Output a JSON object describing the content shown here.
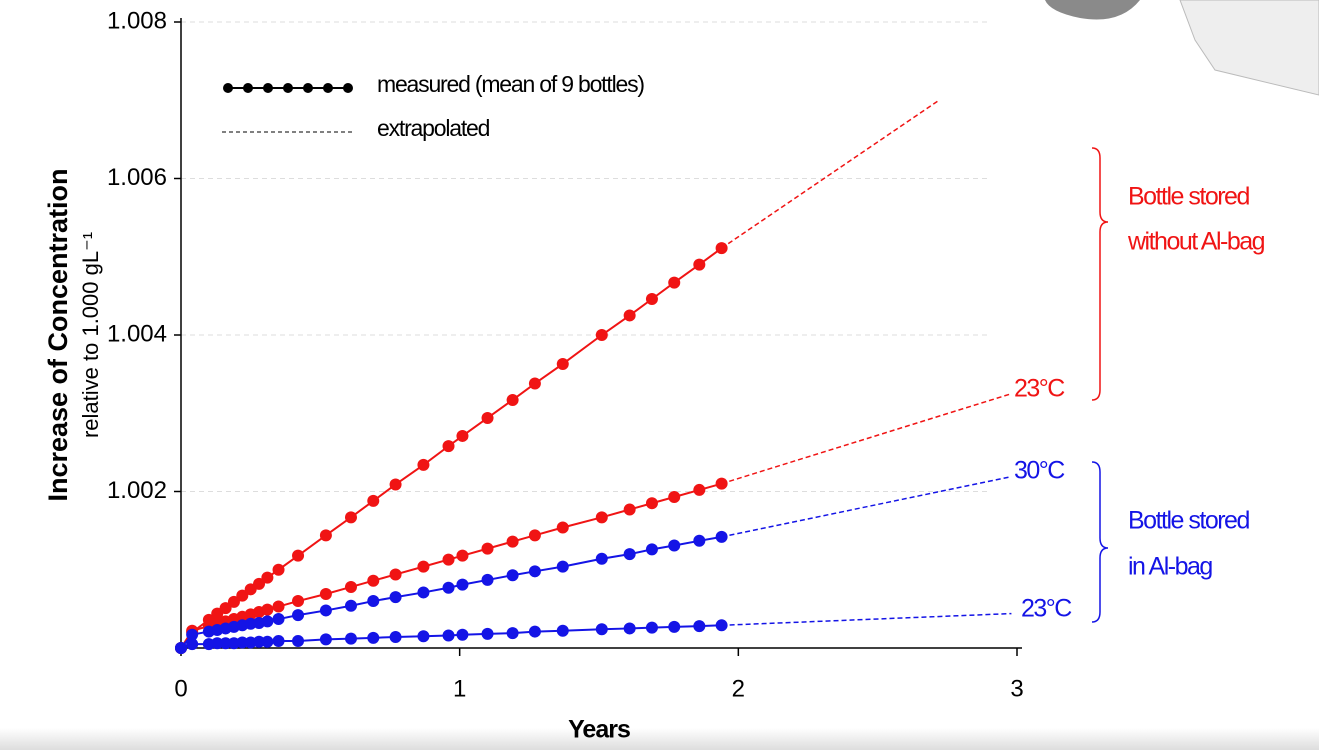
{
  "chart_data": {
    "type": "line",
    "ylabel": "Increase of Concentration",
    "ylabel_sub": "relative to 1.000 gL⁻¹",
    "xlabel": "Years",
    "xlim": [
      0,
      3
    ],
    "xticks": [
      0,
      1,
      2,
      3
    ],
    "ylim": [
      1.0,
      1.008
    ],
    "yticks": [
      1.002,
      1.004,
      1.006,
      1.008
    ],
    "grid": true,
    "legend": [
      "measured (mean of 9 bottles)",
      "extrapolated"
    ],
    "x": [
      0,
      0.04,
      0.1,
      0.13,
      0.16,
      0.19,
      0.22,
      0.25,
      0.28,
      0.31,
      0.35,
      0.42,
      0.52,
      0.61,
      0.69,
      0.77,
      0.87,
      0.96,
      1.01,
      1.1,
      1.19,
      1.27,
      1.37,
      1.51,
      1.61,
      1.69,
      1.77,
      1.86,
      1.94
    ],
    "series": [
      {
        "color": "#f01414",
        "values": [
          1.0,
          1.0002,
          1.00036,
          1.00044,
          1.00051,
          1.00059,
          1.00067,
          1.00075,
          1.00082,
          1.0009,
          1.001,
          1.00118,
          1.00144,
          1.00167,
          1.00188,
          1.00209,
          1.00234,
          1.00258,
          1.00271,
          1.00294,
          1.00317,
          1.00338,
          1.00363,
          1.004,
          1.00425,
          1.00446,
          1.00467,
          1.0049,
          1.00511
        ]
      },
      {
        "color": "#f01414",
        "values": [
          1.0,
          1.00022,
          1.00028,
          1.00031,
          1.00034,
          1.00037,
          1.0004,
          1.00043,
          1.00046,
          1.00049,
          1.00053,
          1.0006,
          1.00069,
          1.00078,
          1.00086,
          1.00094,
          1.00104,
          1.00113,
          1.00118,
          1.00127,
          1.00136,
          1.00144,
          1.00154,
          1.00167,
          1.00177,
          1.00185,
          1.00193,
          1.00202,
          1.0021
        ]
      },
      {
        "color": "#1414e6",
        "values": [
          1.0,
          1.00017,
          1.00021,
          1.00023,
          1.00025,
          1.00027,
          1.00029,
          1.00031,
          1.00032,
          1.00034,
          1.00037,
          1.00042,
          1.00048,
          1.00054,
          1.0006,
          1.00065,
          1.00071,
          1.00077,
          1.00081,
          1.00087,
          1.00093,
          1.00098,
          1.00104,
          1.00114,
          1.0012,
          1.00126,
          1.00131,
          1.00137,
          1.00142
        ]
      },
      {
        "color": "#1414e6",
        "values": [
          1.0,
          1.00005,
          1.00005,
          1.00006,
          1.00006,
          1.00006,
          1.00007,
          1.00007,
          1.00008,
          1.00008,
          1.00009,
          1.00009,
          1.00011,
          1.00012,
          1.00013,
          1.00014,
          1.00015,
          1.00016,
          1.00017,
          1.00018,
          1.00019,
          1.00021,
          1.00022,
          1.00024,
          1.00025,
          1.00026,
          1.00027,
          1.00028,
          1.00029
        ]
      }
    ],
    "extrapolations": [
      {
        "color": "#f01414",
        "x": [
          1.94,
          2.72
        ],
        "values": [
          1.00511,
          1.007
        ]
      },
      {
        "color": "#f01414",
        "x": [
          1.94,
          2.98
        ],
        "values": [
          1.0021,
          1.00325
        ]
      },
      {
        "color": "#1414e6",
        "x": [
          1.94,
          2.98
        ],
        "values": [
          1.00142,
          1.00219
        ]
      },
      {
        "color": "#1414e6",
        "x": [
          1.94,
          2.98
        ],
        "values": [
          1.00029,
          1.00044
        ]
      }
    ],
    "annotations": [
      {
        "text": "23°C",
        "color": "#f01414"
      },
      {
        "text": "Bottle stored",
        "color": "#f01414"
      },
      {
        "text": "without Al-bag",
        "color": "#f01414"
      },
      {
        "text": "30°C",
        "color": "#1414e6"
      },
      {
        "text": "Bottle stored",
        "color": "#1414e6"
      },
      {
        "text": "in Al-bag",
        "color": "#1414e6"
      },
      {
        "text": "23°C",
        "color": "#1414e6"
      }
    ]
  }
}
